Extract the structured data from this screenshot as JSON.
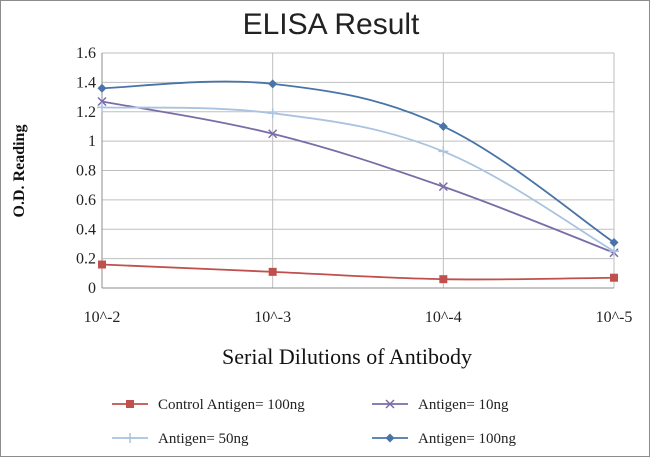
{
  "chart_data": {
    "type": "line",
    "title": "ELISA Result",
    "xlabel": "Serial Dilutions  of Antibody",
    "ylabel": "O.D. Reading",
    "categories": [
      "10^-2",
      "10^-3",
      "10^-4",
      "10^-5"
    ],
    "ylim": [
      0,
      1.6
    ],
    "yticks": [
      "0",
      "0.2",
      "0.4",
      "0.6",
      "0.8",
      "1",
      "1.2",
      "1.4",
      "1.6"
    ],
    "grid": true,
    "legend_position": "bottom",
    "series": [
      {
        "name": "Control Antigen= 100ng",
        "values": [
          0.16,
          0.11,
          0.06,
          0.07
        ],
        "color": "#c0504d",
        "marker": "square"
      },
      {
        "name": "Antigen= 10ng",
        "values": [
          1.27,
          1.05,
          0.69,
          0.24
        ],
        "color": "#7b6ca8",
        "marker": "x"
      },
      {
        "name": "Antigen= 50ng",
        "values": [
          1.23,
          1.19,
          0.93,
          0.25
        ],
        "color": "#a9c3e0",
        "marker": "plus"
      },
      {
        "name": "Antigen= 100ng",
        "values": [
          1.36,
          1.39,
          1.1,
          0.31
        ],
        "color": "#4a74a8",
        "marker": "diamond"
      }
    ]
  }
}
